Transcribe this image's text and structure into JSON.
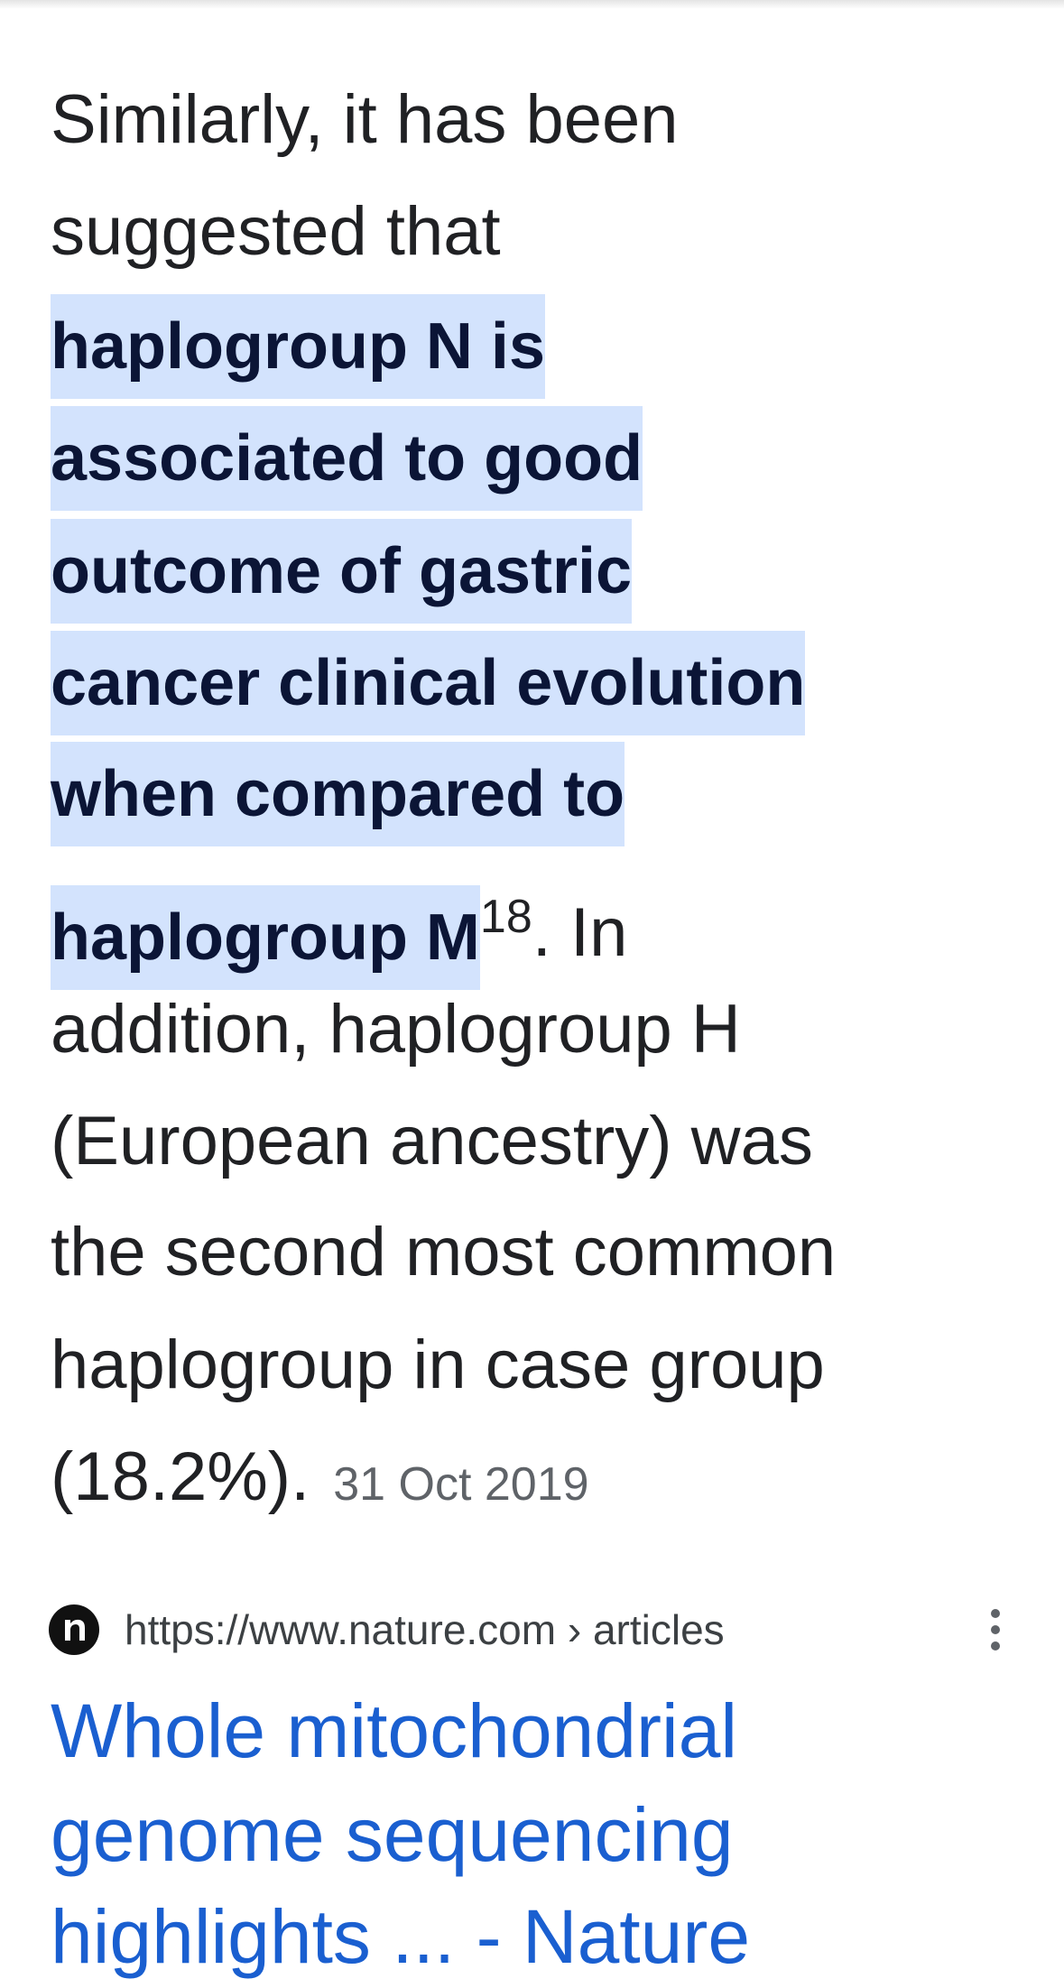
{
  "snippet": {
    "lines_before": [
      "Similarly, it has been",
      "suggested that"
    ],
    "highlight_lines": [
      "haplogroup N is",
      "associated to good",
      "outcome of gastric",
      "cancer clinical evolution",
      "when compared to",
      "haplogroup M"
    ],
    "citation": "18",
    "lines_after": [
      ". In",
      "addition, haplogroup H",
      "(European ancestry) was",
      "the second most common",
      "haplogroup in case group",
      "(18.2%)."
    ],
    "date": "31 Oct 2019"
  },
  "result": {
    "url": "https://www.nature.com › articles",
    "title_lines": [
      "Whole mitochondrial",
      "genome sequencing",
      "highlights ... - Nature"
    ]
  }
}
